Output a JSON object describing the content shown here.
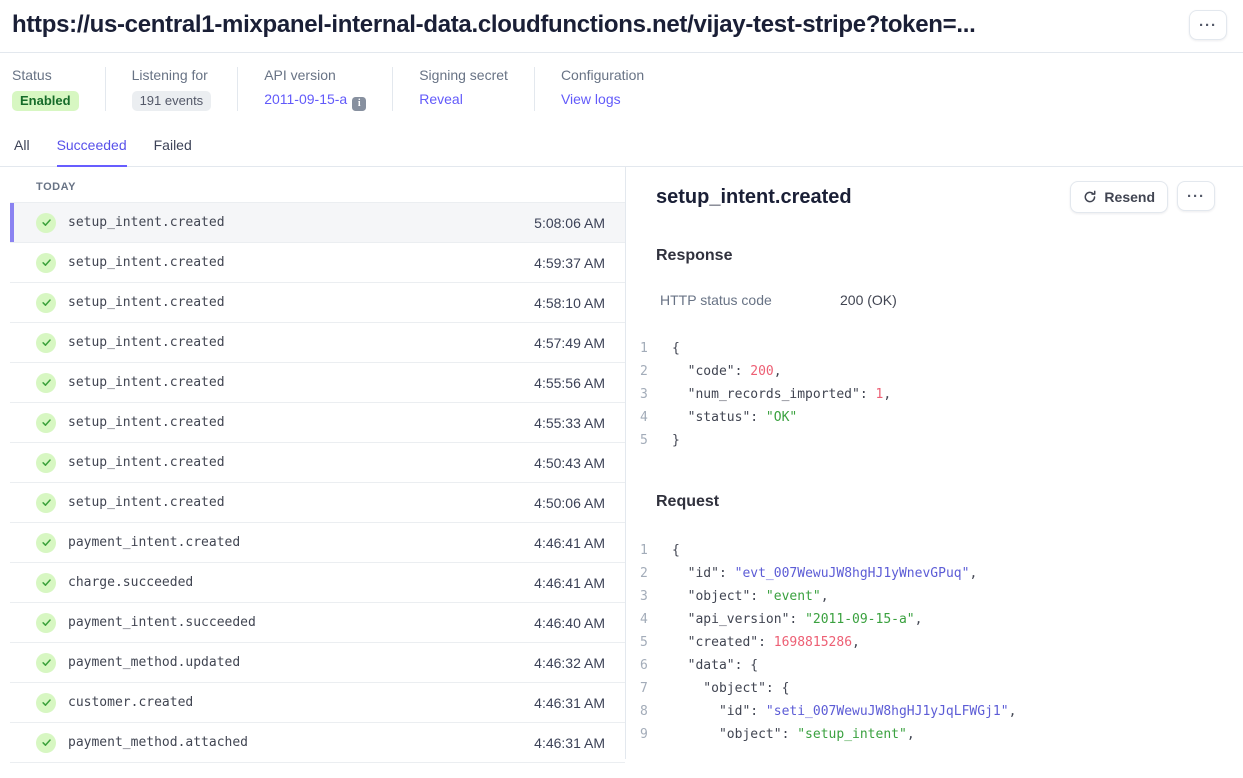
{
  "page": {
    "title": "https://us-central1-mixpanel-internal-data.cloudfunctions.net/vijay-test-stripe?token=...",
    "overflow_button": "···"
  },
  "colors": {
    "accent_purple": "#625afa",
    "tab_underline": "#675dff",
    "success_badge_bg": "#d7f7c2",
    "success_badge_text": "#166c2a",
    "code_number": "#ed5f74",
    "code_string": "#3aa13f",
    "code_id": "#5c5cd6"
  },
  "meta": {
    "items": [
      {
        "label": "Status",
        "value": "Enabled",
        "style": "badge-green"
      },
      {
        "label": "Listening for",
        "value": "191 events",
        "style": "badge-gray"
      },
      {
        "label": "API version",
        "value": "2011-09-15-a",
        "style": "link",
        "info_icon": true
      },
      {
        "label": "Signing secret",
        "value": "Reveal",
        "style": "link"
      },
      {
        "label": "Configuration",
        "value": "View logs",
        "style": "link"
      }
    ]
  },
  "tabs": [
    {
      "label": "All",
      "active": false
    },
    {
      "label": "Succeeded",
      "active": true
    },
    {
      "label": "Failed",
      "active": false
    }
  ],
  "event_list": {
    "section_label": "TODAY",
    "items": [
      {
        "name": "setup_intent.created",
        "time": "5:08:06 AM",
        "selected": true
      },
      {
        "name": "setup_intent.created",
        "time": "4:59:37 AM",
        "selected": false
      },
      {
        "name": "setup_intent.created",
        "time": "4:58:10 AM",
        "selected": false
      },
      {
        "name": "setup_intent.created",
        "time": "4:57:49 AM",
        "selected": false
      },
      {
        "name": "setup_intent.created",
        "time": "4:55:56 AM",
        "selected": false
      },
      {
        "name": "setup_intent.created",
        "time": "4:55:33 AM",
        "selected": false
      },
      {
        "name": "setup_intent.created",
        "time": "4:50:43 AM",
        "selected": false
      },
      {
        "name": "setup_intent.created",
        "time": "4:50:06 AM",
        "selected": false
      },
      {
        "name": "payment_intent.created",
        "time": "4:46:41 AM",
        "selected": false
      },
      {
        "name": "charge.succeeded",
        "time": "4:46:41 AM",
        "selected": false
      },
      {
        "name": "payment_intent.succeeded",
        "time": "4:46:40 AM",
        "selected": false
      },
      {
        "name": "payment_method.updated",
        "time": "4:46:32 AM",
        "selected": false
      },
      {
        "name": "customer.created",
        "time": "4:46:31 AM",
        "selected": false
      },
      {
        "name": "payment_method.attached",
        "time": "4:46:31 AM",
        "selected": false
      }
    ]
  },
  "detail": {
    "title": "setup_intent.created",
    "resend_label": "Resend",
    "overflow_button": "···",
    "response": {
      "heading": "Response",
      "status_label": "HTTP status code",
      "status_value": "200 (OK)",
      "code_lines": [
        [
          {
            "t": "{",
            "c": "p"
          }
        ],
        [
          {
            "t": "  \"code\": ",
            "c": "p"
          },
          {
            "t": "200",
            "c": "n"
          },
          {
            "t": ",",
            "c": "p"
          }
        ],
        [
          {
            "t": "  \"num_records_imported\": ",
            "c": "p"
          },
          {
            "t": "1",
            "c": "n"
          },
          {
            "t": ",",
            "c": "p"
          }
        ],
        [
          {
            "t": "  \"status\": ",
            "c": "p"
          },
          {
            "t": "\"OK\"",
            "c": "s"
          }
        ],
        [
          {
            "t": "}",
            "c": "p"
          }
        ]
      ]
    },
    "request": {
      "heading": "Request",
      "code_lines": [
        [
          {
            "t": "{",
            "c": "p"
          }
        ],
        [
          {
            "t": "  \"id\": ",
            "c": "p"
          },
          {
            "t": "\"evt_007WewuJW8hgHJ1yWnevGPuq\"",
            "c": "i"
          },
          {
            "t": ",",
            "c": "p"
          }
        ],
        [
          {
            "t": "  \"object\": ",
            "c": "p"
          },
          {
            "t": "\"event\"",
            "c": "s"
          },
          {
            "t": ",",
            "c": "p"
          }
        ],
        [
          {
            "t": "  \"api_version\": ",
            "c": "p"
          },
          {
            "t": "\"2011-09-15-a\"",
            "c": "s"
          },
          {
            "t": ",",
            "c": "p"
          }
        ],
        [
          {
            "t": "  \"created\": ",
            "c": "p"
          },
          {
            "t": "1698815286",
            "c": "n"
          },
          {
            "t": ",",
            "c": "p"
          }
        ],
        [
          {
            "t": "  \"data\": {",
            "c": "p"
          }
        ],
        [
          {
            "t": "    \"object\": {",
            "c": "p"
          }
        ],
        [
          {
            "t": "      \"id\": ",
            "c": "p"
          },
          {
            "t": "\"seti_007WewuJW8hgHJ1yJqLFWGj1\"",
            "c": "i"
          },
          {
            "t": ",",
            "c": "p"
          }
        ],
        [
          {
            "t": "      \"object\": ",
            "c": "p"
          },
          {
            "t": "\"setup_intent\"",
            "c": "s"
          },
          {
            "t": ",",
            "c": "p"
          }
        ]
      ]
    }
  }
}
